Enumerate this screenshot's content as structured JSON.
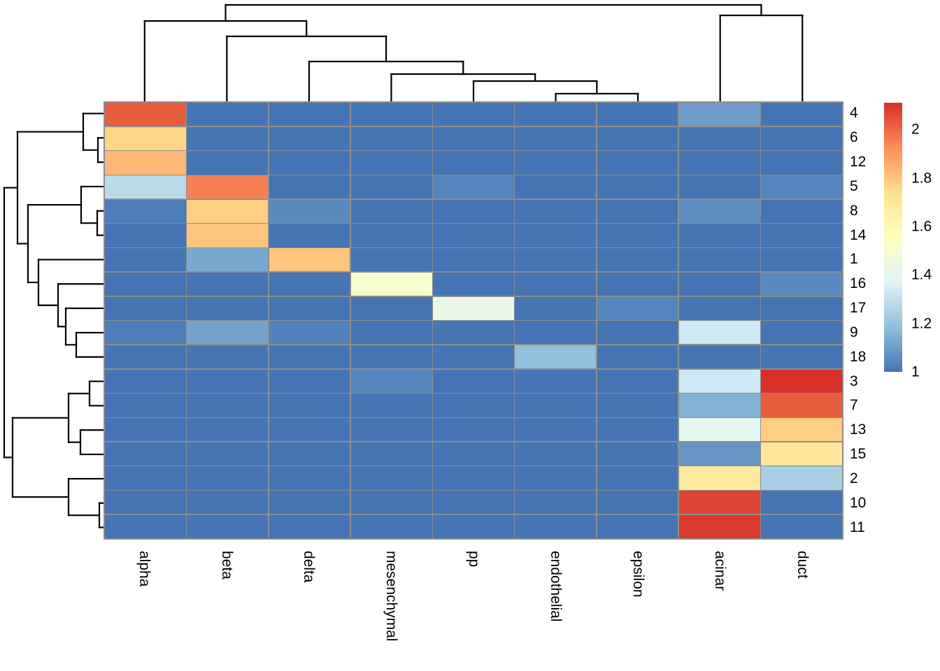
{
  "figure": {
    "background": "#ffffff",
    "grid_color": "#8e8e8e",
    "dendrogram_line_color": "#000000",
    "text_color": "#000000"
  },
  "chart_data": {
    "type": "heatmap",
    "title": "",
    "xlabel": "",
    "ylabel": "",
    "columns": [
      "alpha",
      "beta",
      "delta",
      "mesenchymal",
      "pp",
      "endothelial",
      "epsilon",
      "acinar",
      "duct"
    ],
    "rows": [
      "4",
      "6",
      "12",
      "5",
      "8",
      "14",
      "1",
      "16",
      "17",
      "9",
      "18",
      "3",
      "7",
      "13",
      "15",
      "2",
      "10",
      "11"
    ],
    "matrix": [
      [
        2.02,
        1.0,
        1.0,
        1.0,
        1.0,
        1.0,
        1.0,
        1.1,
        1.0
      ],
      [
        1.76,
        1.0,
        1.0,
        1.0,
        1.0,
        1.0,
        1.0,
        1.0,
        1.0
      ],
      [
        1.83,
        1.0,
        1.0,
        1.0,
        1.0,
        1.0,
        1.0,
        1.0,
        1.0
      ],
      [
        1.28,
        1.95,
        1.0,
        1.0,
        1.04,
        1.0,
        1.0,
        1.0,
        1.04
      ],
      [
        1.02,
        1.78,
        1.05,
        1.0,
        1.0,
        1.0,
        1.0,
        1.06,
        1.0
      ],
      [
        1.0,
        1.8,
        1.0,
        1.0,
        1.0,
        1.0,
        1.0,
        1.0,
        1.0
      ],
      [
        1.0,
        1.13,
        1.8,
        1.0,
        1.0,
        1.0,
        1.0,
        1.0,
        1.0
      ],
      [
        1.0,
        1.0,
        1.0,
        1.51,
        1.0,
        1.0,
        1.0,
        1.0,
        1.05
      ],
      [
        1.0,
        1.0,
        1.0,
        1.0,
        1.43,
        1.0,
        1.04,
        1.0,
        1.0
      ],
      [
        1.02,
        1.11,
        1.03,
        1.0,
        1.0,
        1.0,
        1.0,
        1.33,
        1.0
      ],
      [
        1.0,
        1.0,
        1.0,
        1.0,
        1.0,
        1.19,
        1.0,
        1.0,
        1.0
      ],
      [
        1.0,
        1.0,
        1.0,
        1.04,
        1.0,
        1.0,
        1.0,
        1.33,
        2.11
      ],
      [
        1.0,
        1.0,
        1.0,
        1.0,
        1.0,
        1.0,
        1.0,
        1.15,
        2.02
      ],
      [
        1.0,
        1.0,
        1.0,
        1.0,
        1.0,
        1.0,
        1.0,
        1.4,
        1.78
      ],
      [
        1.0,
        1.0,
        1.0,
        1.0,
        1.0,
        1.0,
        1.0,
        1.08,
        1.7
      ],
      [
        1.0,
        1.0,
        1.0,
        1.0,
        1.0,
        1.0,
        1.0,
        1.68,
        1.24
      ],
      [
        1.0,
        1.0,
        1.0,
        1.0,
        1.0,
        1.0,
        1.0,
        2.07,
        1.0
      ],
      [
        1.0,
        1.0,
        1.0,
        1.0,
        1.0,
        1.0,
        1.0,
        2.09,
        1.0
      ]
    ],
    "color_scale": {
      "palette_low_to_high": [
        "#4575B4",
        "#91BFDB",
        "#E0F3F8",
        "#FFFFBF",
        "#FEE090",
        "#FC8D59",
        "#D73027"
      ],
      "vmin": 1.0,
      "vmax": 2.11,
      "legend_ticks": [
        {
          "label": "2",
          "value": 2.0
        },
        {
          "label": "1.8",
          "value": 1.8
        },
        {
          "label": "1.6",
          "value": 1.6
        },
        {
          "label": "1.4",
          "value": 1.4
        },
        {
          "label": "1.2",
          "value": 1.2
        },
        {
          "label": "1",
          "value": 1.0
        }
      ]
    },
    "col_dendrogram": {
      "merges": [
        [
          "endothelial",
          "epsilon",
          10
        ],
        [
          "pp",
          0,
          28
        ],
        [
          "mesenchymal",
          1,
          38
        ],
        [
          "delta",
          2,
          56
        ],
        [
          "beta",
          3,
          92
        ],
        [
          "alpha",
          4,
          114
        ],
        [
          "acinar",
          "duct",
          122
        ],
        [
          5,
          6,
          137
        ]
      ]
    },
    "row_dendrogram": {
      "merges": [
        [
          "6",
          "12",
          7
        ],
        [
          "4",
          0,
          28
        ],
        [
          "8",
          "14",
          8
        ],
        [
          "5",
          2,
          31
        ],
        [
          "9",
          "18",
          38
        ],
        [
          "17",
          4,
          53
        ],
        [
          "16",
          5,
          64
        ],
        [
          "1",
          6,
          92
        ],
        [
          3,
          7,
          107
        ],
        [
          1,
          8,
          122
        ],
        [
          "3",
          "7",
          19
        ],
        [
          "13",
          "15",
          32
        ],
        [
          10,
          11,
          49
        ],
        [
          "10",
          "11",
          5
        ],
        [
          "2",
          13,
          49
        ],
        [
          12,
          14,
          129
        ],
        [
          9,
          15,
          141
        ]
      ]
    }
  }
}
